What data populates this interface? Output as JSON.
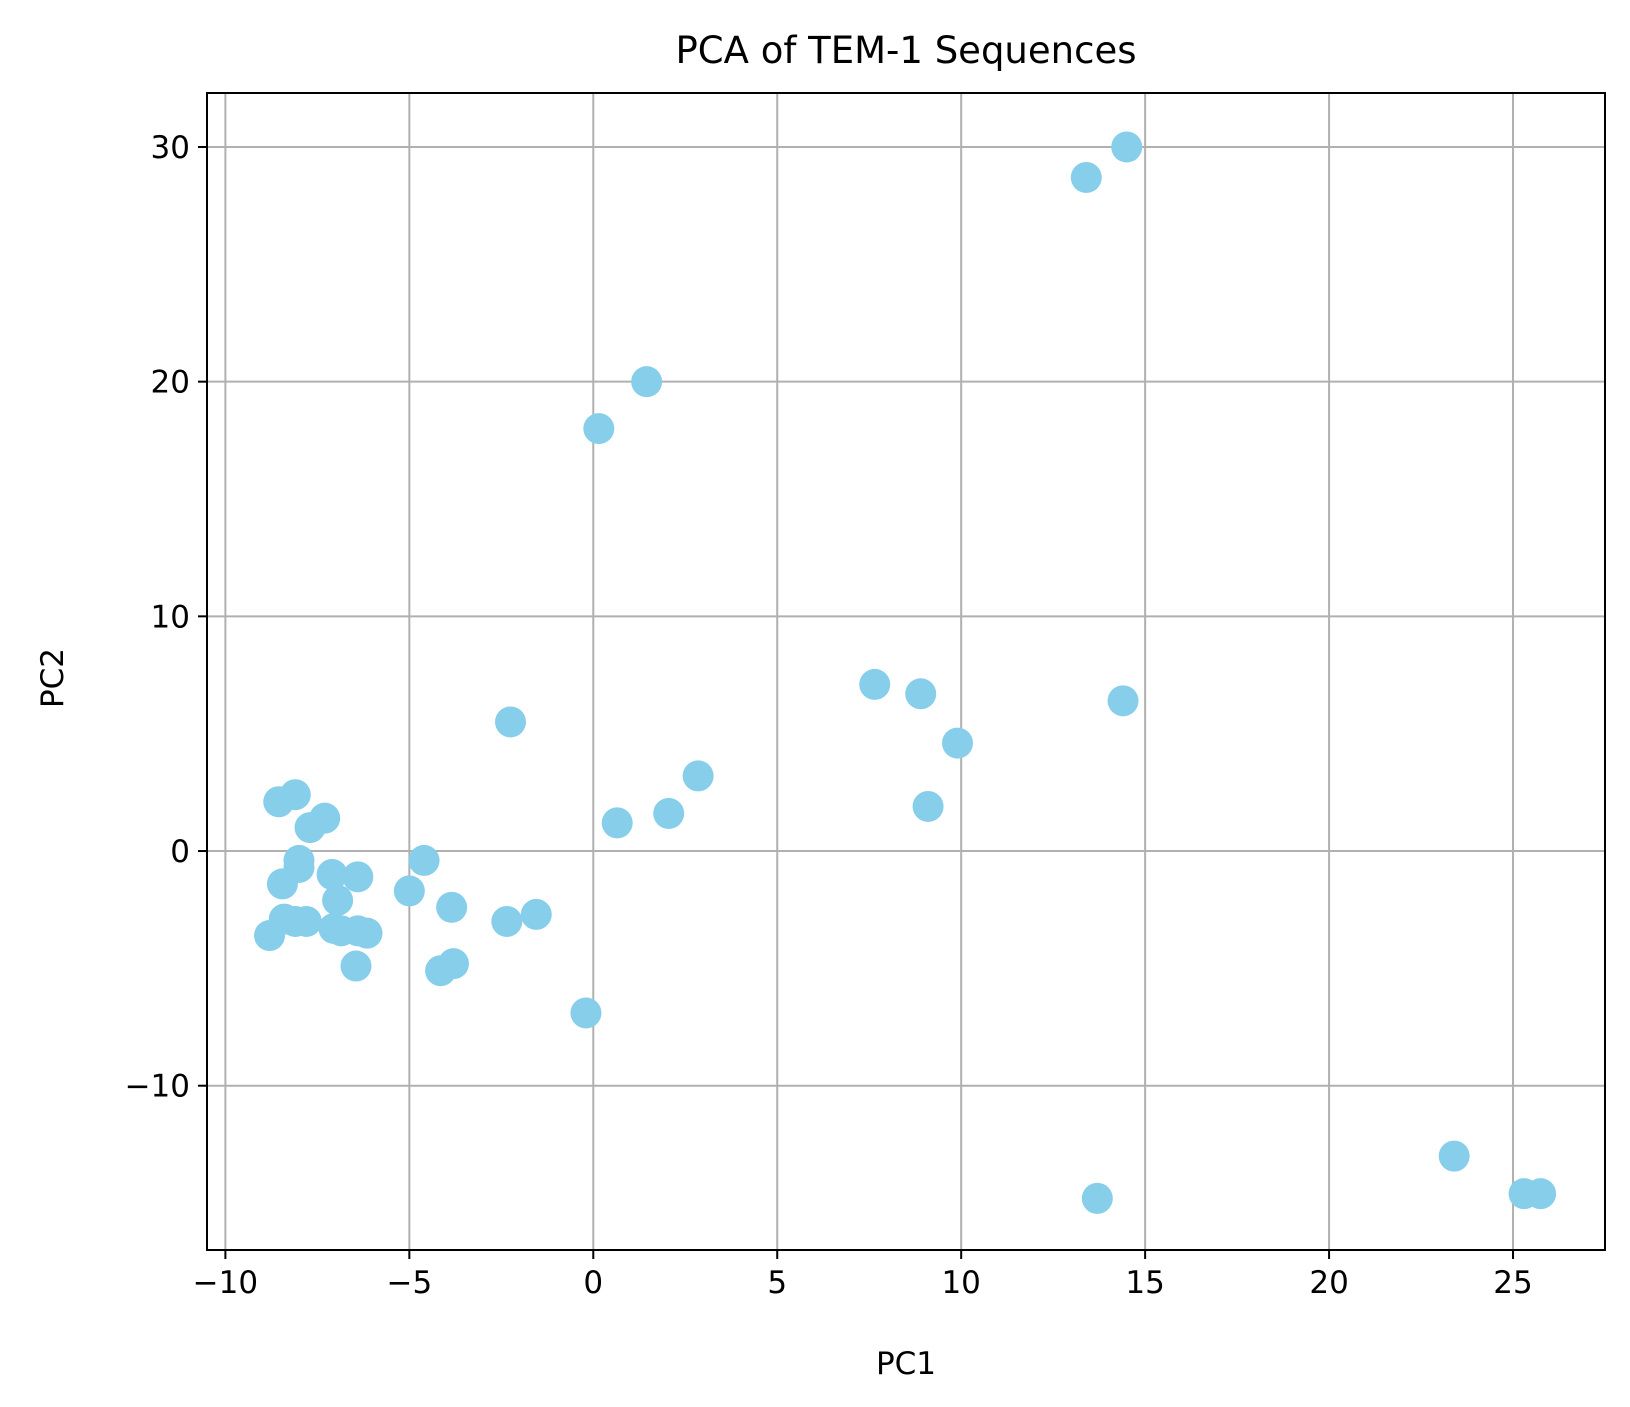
{
  "chart_data": {
    "type": "scatter",
    "title": "PCA of TEM-1 Sequences",
    "xlabel": "PC1",
    "ylabel": "PC2",
    "xlim": [
      -10.5,
      27.5
    ],
    "ylim": [
      -17,
      32.3
    ],
    "xticks": [
      -10,
      -5,
      0,
      5,
      10,
      15,
      20,
      25
    ],
    "xtick_labels": [
      "−10",
      "−5",
      "0",
      "5",
      "10",
      "15",
      "20",
      "25"
    ],
    "yticks": [
      -10,
      0,
      10,
      20,
      30
    ],
    "ytick_labels": [
      "−10",
      "0",
      "10",
      "20",
      "30"
    ],
    "grid": true,
    "colors": {
      "marker": "#87ceeb",
      "grid": "#b0b0b0",
      "axes": "#000000"
    },
    "series": [
      {
        "points": [
          {
            "x": 14.5,
            "y": 30.0
          },
          {
            "x": 13.4,
            "y": 28.7
          },
          {
            "x": 1.45,
            "y": 20.0
          },
          {
            "x": 0.15,
            "y": 18.0
          },
          {
            "x": 7.65,
            "y": 7.1
          },
          {
            "x": 8.9,
            "y": 6.7
          },
          {
            "x": 14.4,
            "y": 6.4
          },
          {
            "x": 9.9,
            "y": 4.6
          },
          {
            "x": 9.1,
            "y": 1.9
          },
          {
            "x": -2.25,
            "y": 5.5
          },
          {
            "x": 2.85,
            "y": 3.2
          },
          {
            "x": 2.05,
            "y": 1.6
          },
          {
            "x": 0.65,
            "y": 1.2
          },
          {
            "x": -8.55,
            "y": 2.1
          },
          {
            "x": -8.1,
            "y": 2.4
          },
          {
            "x": -7.3,
            "y": 1.4
          },
          {
            "x": -7.7,
            "y": 1.0
          },
          {
            "x": -8.0,
            "y": -0.4
          },
          {
            "x": -8.0,
            "y": -0.7
          },
          {
            "x": -8.45,
            "y": -1.4
          },
          {
            "x": -7.1,
            "y": -1.0
          },
          {
            "x": -6.4,
            "y": -1.1
          },
          {
            "x": -6.95,
            "y": -2.1
          },
          {
            "x": -5.0,
            "y": -1.7
          },
          {
            "x": -4.6,
            "y": -0.4
          },
          {
            "x": -3.85,
            "y": -2.4
          },
          {
            "x": -8.8,
            "y": -3.6
          },
          {
            "x": -8.4,
            "y": -2.9
          },
          {
            "x": -8.1,
            "y": -3.0
          },
          {
            "x": -7.8,
            "y": -3.0
          },
          {
            "x": -7.05,
            "y": -3.3
          },
          {
            "x": -6.85,
            "y": -3.4
          },
          {
            "x": -6.4,
            "y": -3.4
          },
          {
            "x": -6.15,
            "y": -3.5
          },
          {
            "x": -6.45,
            "y": -4.9
          },
          {
            "x": -4.15,
            "y": -5.1
          },
          {
            "x": -3.8,
            "y": -4.8
          },
          {
            "x": -2.35,
            "y": -3.0
          },
          {
            "x": -1.55,
            "y": -2.7
          },
          {
            "x": -0.2,
            "y": -6.9
          },
          {
            "x": 13.7,
            "y": -14.8
          },
          {
            "x": 23.4,
            "y": -13.0
          },
          {
            "x": 25.3,
            "y": -14.6
          },
          {
            "x": 25.75,
            "y": -14.6
          }
        ]
      }
    ]
  }
}
